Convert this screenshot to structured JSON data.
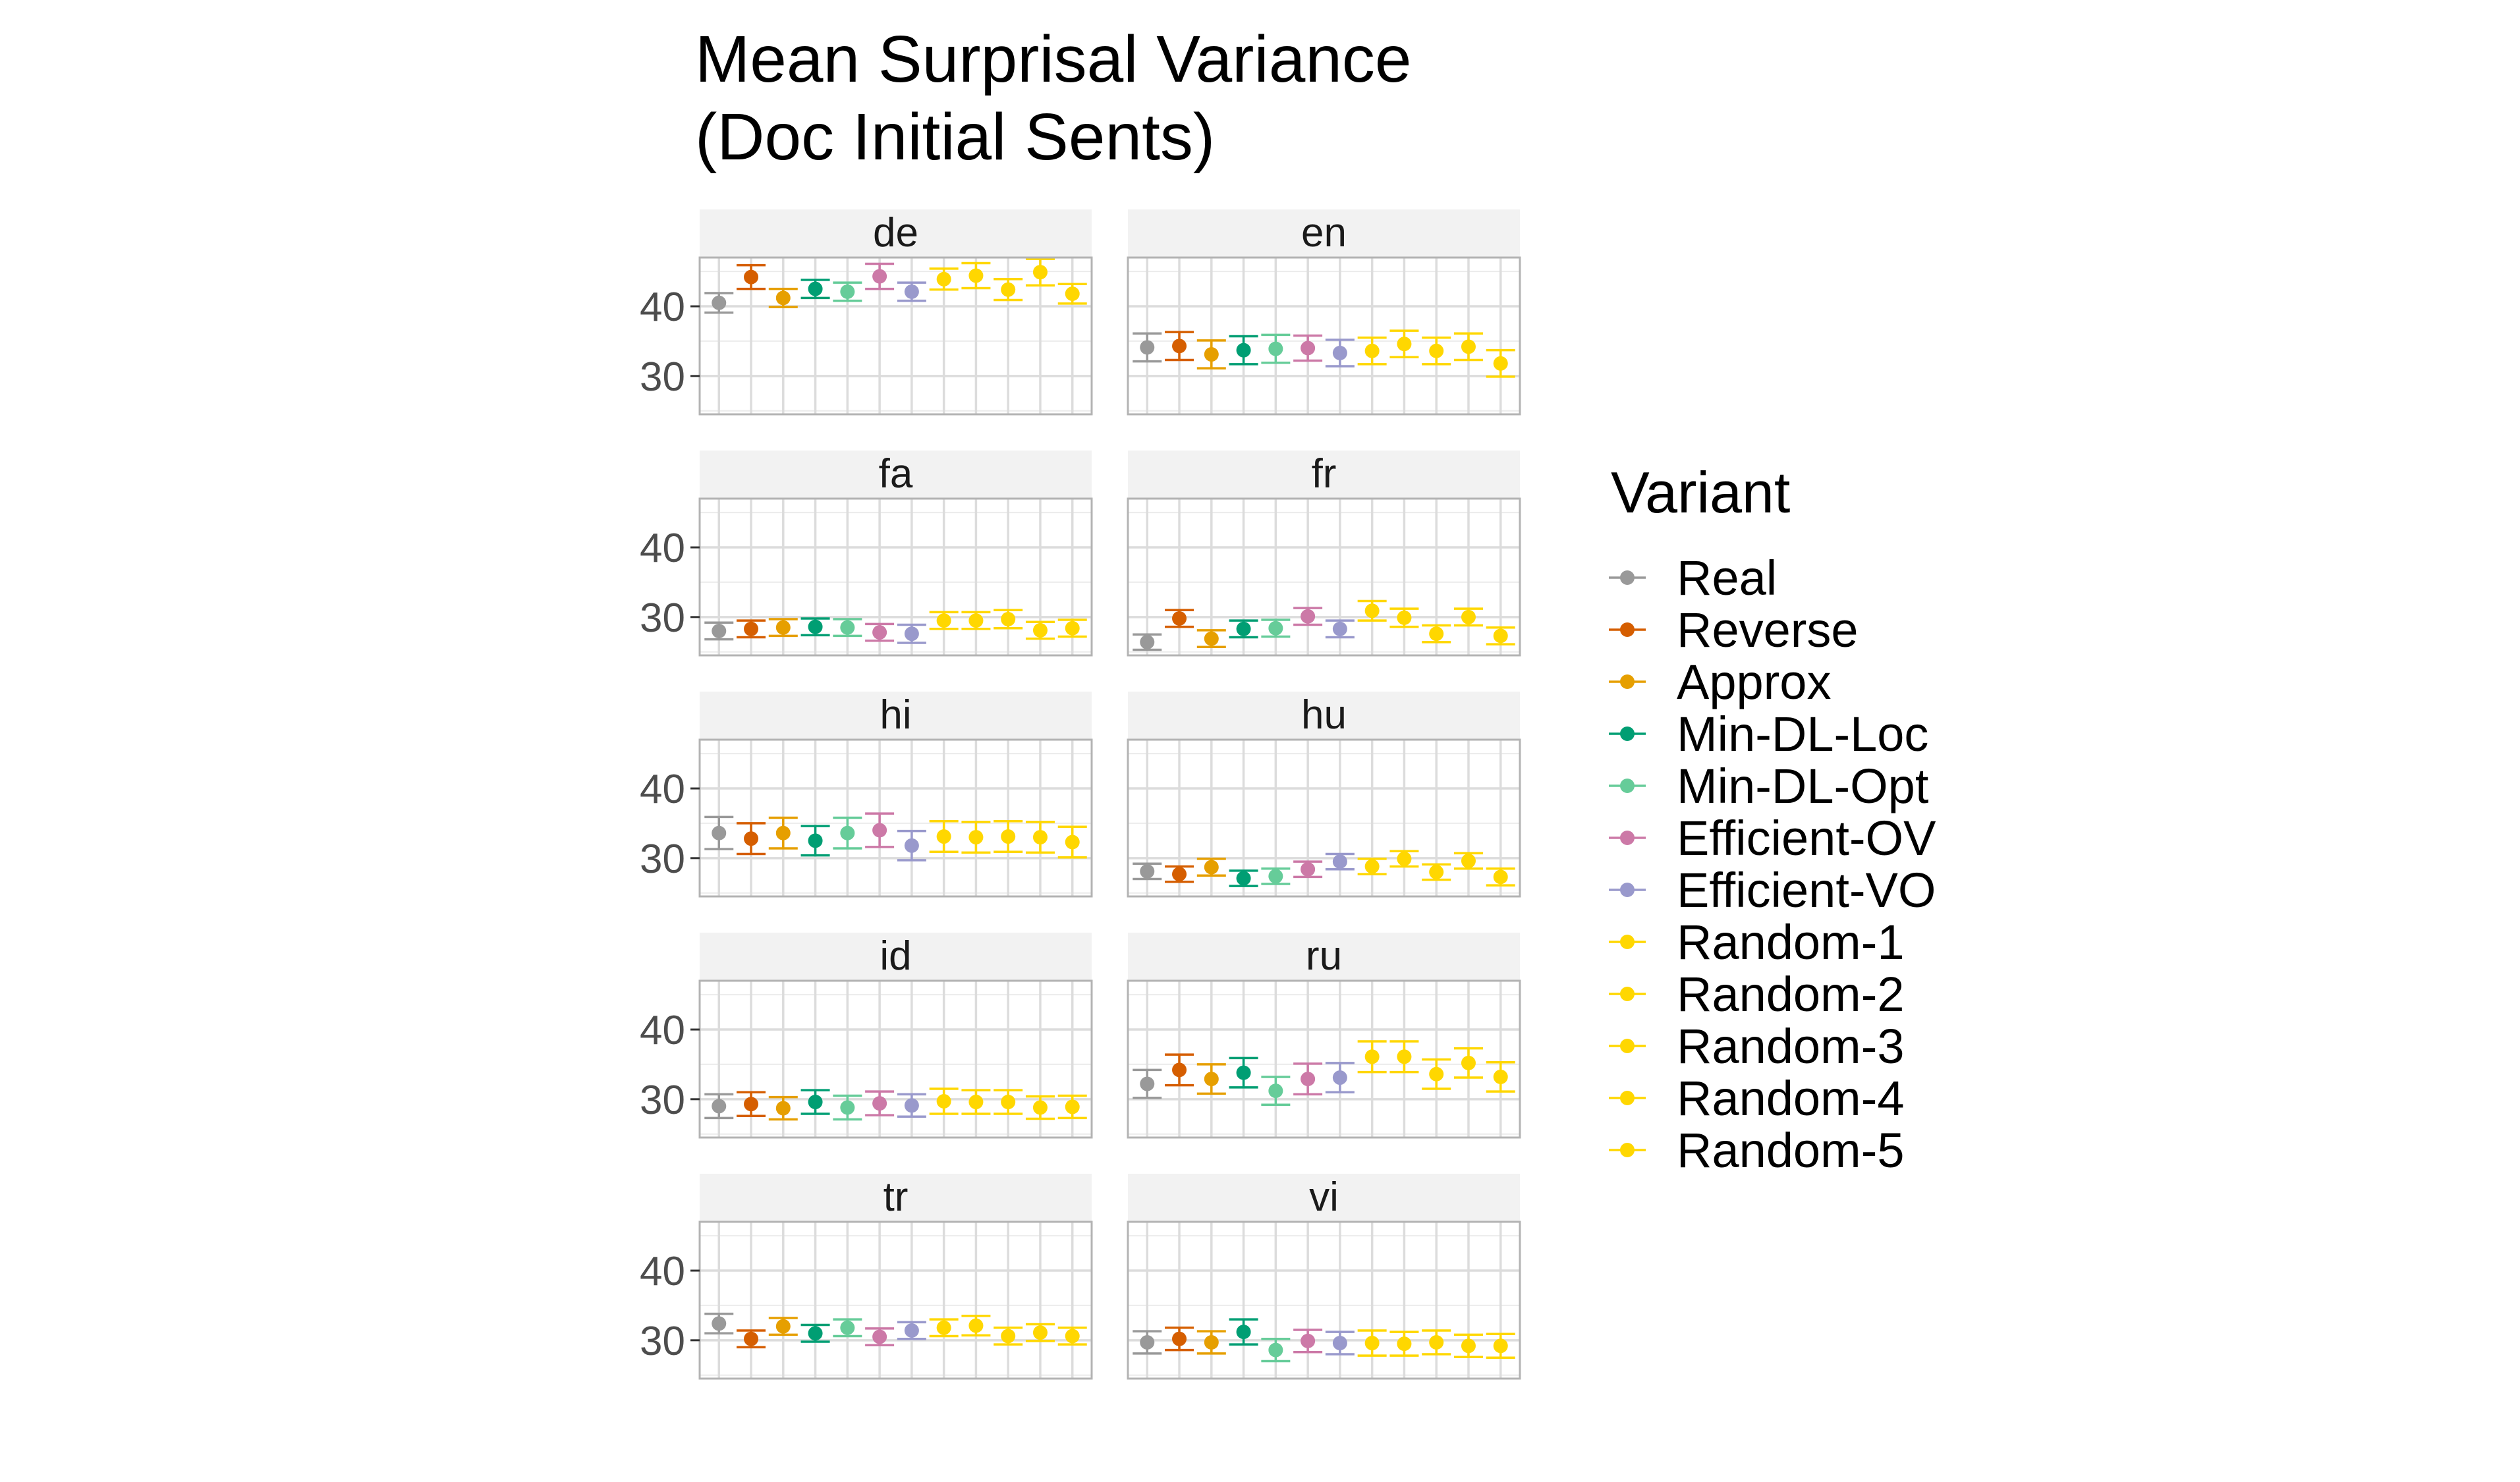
{
  "chart_data": {
    "type": "scatter",
    "title": "Mean Surprisal Variance\n(Doc Initial Sents)",
    "title_lines": [
      "Mean Surprisal Variance",
      "(Doc Initial Sents)"
    ],
    "xlabel": "",
    "ylabel": "",
    "ylim": [
      24.5,
      47
    ],
    "y_ticks": [
      30,
      40
    ],
    "grid": true,
    "legend_position": "right",
    "legend_title": "Variant",
    "variants": [
      "Real",
      "Reverse",
      "Approx",
      "Min-DL-Loc",
      "Min-DL-Opt",
      "Efficient-OV",
      "Efficient-VO",
      "Random-1",
      "Random-2",
      "Random-3",
      "Random-4",
      "Random-5"
    ],
    "colors": {
      "Real": "#999999",
      "Reverse": "#D55E00",
      "Approx": "#E69F00",
      "Min-DL-Loc": "#009E73",
      "Min-DL-Opt": "#66CC99",
      "Efficient-OV": "#CC79A7",
      "Efficient-VO": "#9999CC",
      "Random-1": "#FFD700",
      "Random-2": "#FFD700",
      "Random-3": "#FFD700",
      "Random-4": "#FFD700",
      "Random-5": "#FFD700"
    },
    "panels": [
      {
        "label": "de",
        "means": [
          40.5,
          44.2,
          41.2,
          42.5,
          42.1,
          44.3,
          42.1,
          43.9,
          44.4,
          42.4,
          44.9,
          41.8
        ],
        "lower": [
          39.1,
          42.5,
          39.9,
          41.2,
          40.8,
          42.5,
          40.8,
          42.4,
          42.6,
          40.9,
          43.0,
          40.4
        ],
        "upper": [
          41.9,
          45.9,
          42.5,
          43.8,
          43.4,
          46.1,
          43.4,
          45.4,
          46.2,
          43.9,
          46.8,
          43.2
        ]
      },
      {
        "label": "en",
        "means": [
          34.1,
          34.3,
          33.1,
          33.7,
          33.9,
          34.0,
          33.3,
          33.6,
          34.6,
          33.6,
          34.2,
          31.8
        ],
        "lower": [
          32.1,
          32.3,
          31.1,
          31.7,
          31.9,
          32.2,
          31.4,
          31.7,
          32.7,
          31.7,
          32.3,
          29.9
        ],
        "upper": [
          36.1,
          36.3,
          35.1,
          35.7,
          35.9,
          35.8,
          35.2,
          35.5,
          36.5,
          35.5,
          36.1,
          33.7
        ]
      },
      {
        "label": "fa",
        "means": [
          28.0,
          28.3,
          28.5,
          28.6,
          28.5,
          27.8,
          27.6,
          29.5,
          29.5,
          29.7,
          28.1,
          28.4
        ],
        "lower": [
          26.8,
          27.1,
          27.3,
          27.4,
          27.3,
          26.6,
          26.3,
          28.3,
          28.3,
          28.4,
          26.9,
          27.2
        ],
        "upper": [
          29.2,
          29.5,
          29.7,
          29.8,
          29.7,
          29.0,
          28.9,
          30.7,
          30.7,
          31.0,
          29.3,
          29.6
        ]
      },
      {
        "label": "fr",
        "means": [
          26.4,
          29.8,
          26.9,
          28.3,
          28.4,
          30.1,
          28.3,
          30.9,
          29.9,
          27.6,
          30.0,
          27.3
        ],
        "lower": [
          25.3,
          28.6,
          25.7,
          27.1,
          27.2,
          28.9,
          27.1,
          29.5,
          28.6,
          26.4,
          28.8,
          26.1
        ],
        "upper": [
          27.5,
          31.0,
          28.1,
          29.5,
          29.6,
          31.3,
          29.5,
          32.3,
          31.2,
          28.8,
          31.2,
          28.5
        ]
      },
      {
        "label": "hi",
        "means": [
          33.6,
          32.8,
          33.6,
          32.5,
          33.6,
          34.0,
          31.8,
          33.1,
          33.0,
          33.1,
          33.0,
          32.3
        ],
        "lower": [
          31.3,
          30.6,
          31.4,
          30.4,
          31.4,
          31.6,
          29.7,
          30.9,
          30.8,
          30.9,
          30.8,
          30.1
        ],
        "upper": [
          35.9,
          35.0,
          35.8,
          34.6,
          35.8,
          36.4,
          33.9,
          35.3,
          35.2,
          35.3,
          35.2,
          34.5
        ]
      },
      {
        "label": "hu",
        "means": [
          28.1,
          27.7,
          28.7,
          27.1,
          27.4,
          28.4,
          29.5,
          28.8,
          29.9,
          28.0,
          29.6,
          27.3
        ],
        "lower": [
          27.0,
          26.6,
          27.5,
          26.0,
          26.3,
          27.3,
          28.4,
          27.7,
          28.8,
          26.9,
          28.5,
          26.1
        ],
        "upper": [
          29.2,
          28.8,
          29.9,
          28.2,
          28.5,
          29.5,
          30.6,
          29.9,
          31.0,
          29.1,
          30.7,
          28.5
        ]
      },
      {
        "label": "id",
        "means": [
          29.0,
          29.3,
          28.7,
          29.6,
          28.8,
          29.4,
          29.1,
          29.7,
          29.6,
          29.6,
          28.8,
          28.9
        ],
        "lower": [
          27.3,
          27.6,
          27.1,
          27.9,
          27.1,
          27.7,
          27.5,
          27.9,
          27.9,
          27.9,
          27.2,
          27.3
        ],
        "upper": [
          30.7,
          31.0,
          30.3,
          31.3,
          30.5,
          31.1,
          30.7,
          31.5,
          31.3,
          31.3,
          30.4,
          30.5
        ]
      },
      {
        "label": "ru",
        "means": [
          32.2,
          34.2,
          32.9,
          33.8,
          31.2,
          32.9,
          33.1,
          36.1,
          36.1,
          33.6,
          35.2,
          33.2
        ],
        "lower": [
          30.2,
          32.0,
          30.8,
          31.7,
          29.2,
          30.7,
          31.0,
          33.9,
          33.9,
          31.5,
          33.1,
          31.1
        ],
        "upper": [
          34.2,
          36.4,
          35.0,
          35.9,
          33.2,
          35.1,
          35.2,
          38.3,
          38.3,
          35.7,
          37.3,
          35.3
        ]
      },
      {
        "label": "tr",
        "means": [
          32.4,
          30.2,
          32.0,
          31.0,
          31.8,
          30.5,
          31.4,
          31.8,
          32.1,
          30.6,
          31.1,
          30.6
        ],
        "lower": [
          31.0,
          29.0,
          30.8,
          29.8,
          30.6,
          29.3,
          30.2,
          30.6,
          30.7,
          29.4,
          29.9,
          29.4
        ],
        "upper": [
          33.8,
          31.4,
          33.2,
          32.2,
          33.0,
          31.7,
          32.6,
          33.0,
          33.5,
          31.8,
          32.3,
          31.8
        ]
      },
      {
        "label": "vi",
        "means": [
          29.7,
          30.2,
          29.7,
          31.2,
          28.6,
          29.9,
          29.6,
          29.6,
          29.5,
          29.7,
          29.2,
          29.2
        ],
        "lower": [
          28.1,
          28.6,
          28.1,
          29.4,
          27.0,
          28.3,
          28.0,
          27.8,
          27.8,
          28.0,
          27.6,
          27.5
        ],
        "upper": [
          31.3,
          31.8,
          31.3,
          33.0,
          30.2,
          31.5,
          31.2,
          31.4,
          31.2,
          31.4,
          30.8,
          30.9
        ]
      }
    ]
  }
}
